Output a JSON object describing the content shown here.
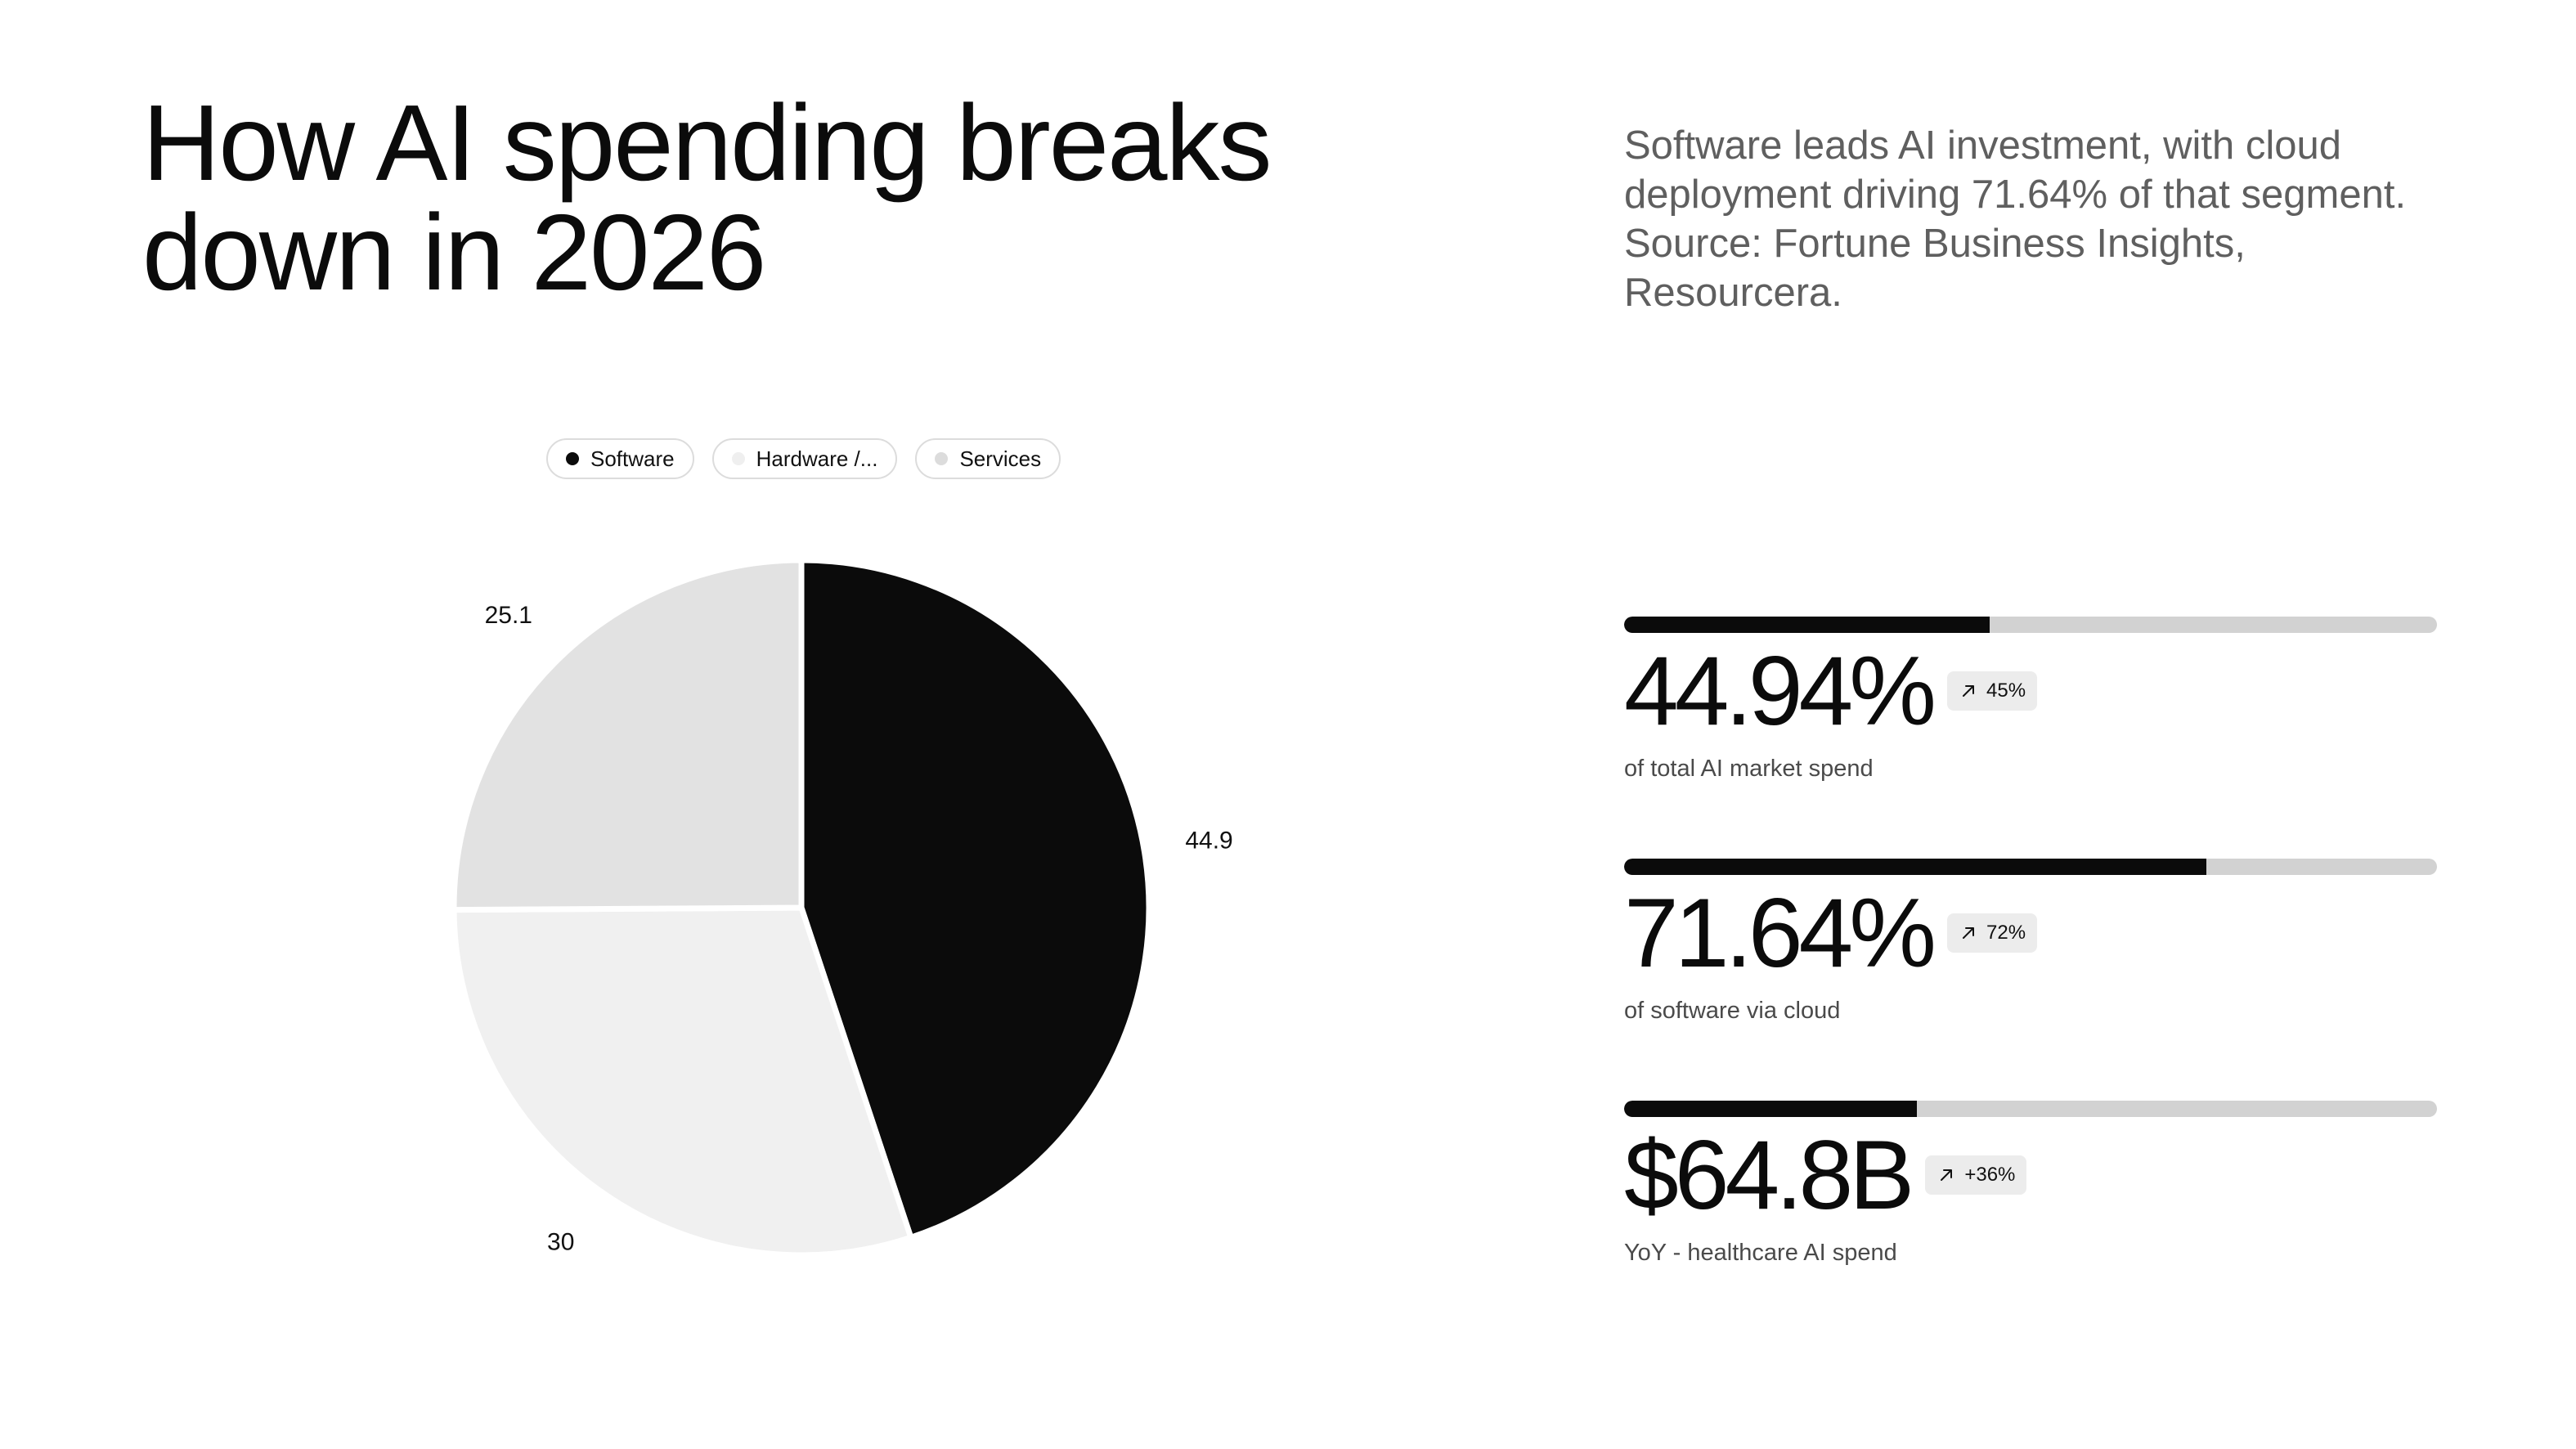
{
  "header": {
    "title_line1": "How AI spending breaks",
    "title_line2": "down in 2026",
    "subtitle_line1": "Software leads AI investment, with cloud",
    "subtitle_line2": "deployment driving 71.64% of that segment.",
    "subtitle_line3": "Source: Fortune Business Insights,",
    "subtitle_line4": "Resourcera."
  },
  "legend": [
    {
      "label": "Software",
      "color": "#0b0b0b"
    },
    {
      "label": "Hardware /...",
      "color": "#efefef"
    },
    {
      "label": "Services",
      "color": "#dcdcdc"
    }
  ],
  "chart_data": {
    "type": "pie",
    "categories": [
      "Software",
      "Hardware /...",
      "Services"
    ],
    "values": [
      44.9,
      30,
      25.1
    ],
    "value_labels": [
      "44.9",
      "30",
      "25.1"
    ],
    "colors": [
      "#0b0b0b",
      "#f0f0f0",
      "#e2e2e2"
    ],
    "start_angle_deg": 0,
    "direction": "clockwise",
    "legend_position": "top"
  },
  "metrics": [
    {
      "value": "44.94%",
      "badge": "45%",
      "badge_icon": "arrow-up-right-icon",
      "caption": "of total AI market spend",
      "bar_fraction": 0.4494
    },
    {
      "value": "71.64%",
      "badge": "72%",
      "badge_icon": "arrow-up-right-icon",
      "caption": "of software via cloud",
      "bar_fraction": 0.7164
    },
    {
      "value": "$64.8B",
      "badge": "+36%",
      "badge_icon": "arrow-up-right-icon",
      "caption": "YoY - healthcare AI spend",
      "bar_fraction": 0.36
    }
  ]
}
